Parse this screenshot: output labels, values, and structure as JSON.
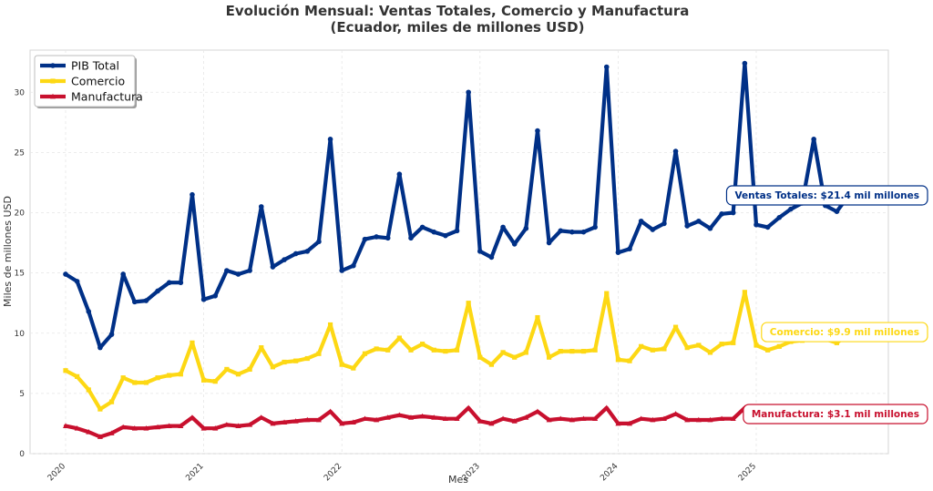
{
  "chart_data": {
    "type": "line",
    "title": "Evolución Mensual: Ventas Totales, Comercio y Manufactura",
    "subtitle": "(Ecuador, miles de millones USD)",
    "xlabel": "Mes",
    "ylabel": "Miles de millones USD",
    "ylim": [
      0,
      33.5
    ],
    "yticks": [
      0,
      5,
      10,
      15,
      20,
      25,
      30
    ],
    "x_start": "2020-01",
    "x_end": "2025-12",
    "xticks": [
      "2020",
      "2021",
      "2022",
      "2023",
      "2024",
      "2025"
    ],
    "grid": true,
    "legend_position": "top-left",
    "series": [
      {
        "name": "PIB Total",
        "color": "#003087",
        "values": [
          14.9,
          14.3,
          11.8,
          8.8,
          9.9,
          14.9,
          12.6,
          12.7,
          13.5,
          14.2,
          14.2,
          21.5,
          12.8,
          13.1,
          15.2,
          14.9,
          15.2,
          20.5,
          15.5,
          16.1,
          16.6,
          16.8,
          17.6,
          26.1,
          15.2,
          15.6,
          17.8,
          18.0,
          17.9,
          23.2,
          17.9,
          18.8,
          18.4,
          18.1,
          18.5,
          30.0,
          16.8,
          16.3,
          18.8,
          17.4,
          18.7,
          26.8,
          17.5,
          18.5,
          18.4,
          18.4,
          18.8,
          32.1,
          16.7,
          17.0,
          19.3,
          18.6,
          19.1,
          25.1,
          18.9,
          19.3,
          18.7,
          19.9,
          20.0,
          32.4,
          19.0,
          18.8,
          19.6,
          20.3,
          20.8,
          26.1,
          20.6,
          20.1,
          21.4
        ]
      },
      {
        "name": "Comercio",
        "color": "#FDD814",
        "values": [
          6.9,
          6.4,
          5.3,
          3.7,
          4.3,
          6.3,
          5.9,
          5.9,
          6.3,
          6.5,
          6.6,
          9.2,
          6.1,
          6.0,
          7.0,
          6.6,
          7.0,
          8.8,
          7.2,
          7.6,
          7.7,
          7.9,
          8.3,
          10.7,
          7.4,
          7.1,
          8.3,
          8.7,
          8.6,
          9.6,
          8.6,
          9.1,
          8.6,
          8.5,
          8.6,
          12.5,
          8.0,
          7.4,
          8.4,
          8.0,
          8.4,
          11.3,
          8.0,
          8.5,
          8.5,
          8.5,
          8.6,
          13.3,
          7.8,
          7.7,
          8.9,
          8.6,
          8.7,
          10.5,
          8.8,
          9.0,
          8.4,
          9.1,
          9.2,
          13.4,
          9.0,
          8.6,
          8.9,
          9.3,
          9.4,
          10.0,
          9.5,
          9.2,
          9.9
        ]
      },
      {
        "name": "Manufactura",
        "color": "#C8102E",
        "values": [
          2.3,
          2.1,
          1.8,
          1.4,
          1.7,
          2.2,
          2.1,
          2.1,
          2.2,
          2.3,
          2.3,
          3.0,
          2.1,
          2.1,
          2.4,
          2.3,
          2.4,
          3.0,
          2.5,
          2.6,
          2.7,
          2.8,
          2.8,
          3.5,
          2.5,
          2.6,
          2.9,
          2.8,
          3.0,
          3.2,
          3.0,
          3.1,
          3.0,
          2.9,
          2.9,
          3.8,
          2.7,
          2.5,
          2.9,
          2.7,
          3.0,
          3.5,
          2.8,
          2.9,
          2.8,
          2.9,
          2.9,
          3.8,
          2.5,
          2.5,
          2.9,
          2.8,
          2.9,
          3.3,
          2.8,
          2.8,
          2.8,
          2.9,
          2.9,
          3.8,
          2.8,
          2.8,
          2.9,
          3.0,
          3.0,
          3.1,
          3.0,
          3.0,
          3.1
        ]
      }
    ],
    "annotations": [
      {
        "text": "Ventas Totales: $21.4 mil millones",
        "series": "PIB Total",
        "color": "#003087"
      },
      {
        "text": "Comercio: $9.9 mil millones",
        "series": "Comercio",
        "color": "#FDD814"
      },
      {
        "text": "Manufactura: $3.1 mil millones",
        "series": "Manufactura",
        "color": "#C8102E"
      }
    ]
  }
}
